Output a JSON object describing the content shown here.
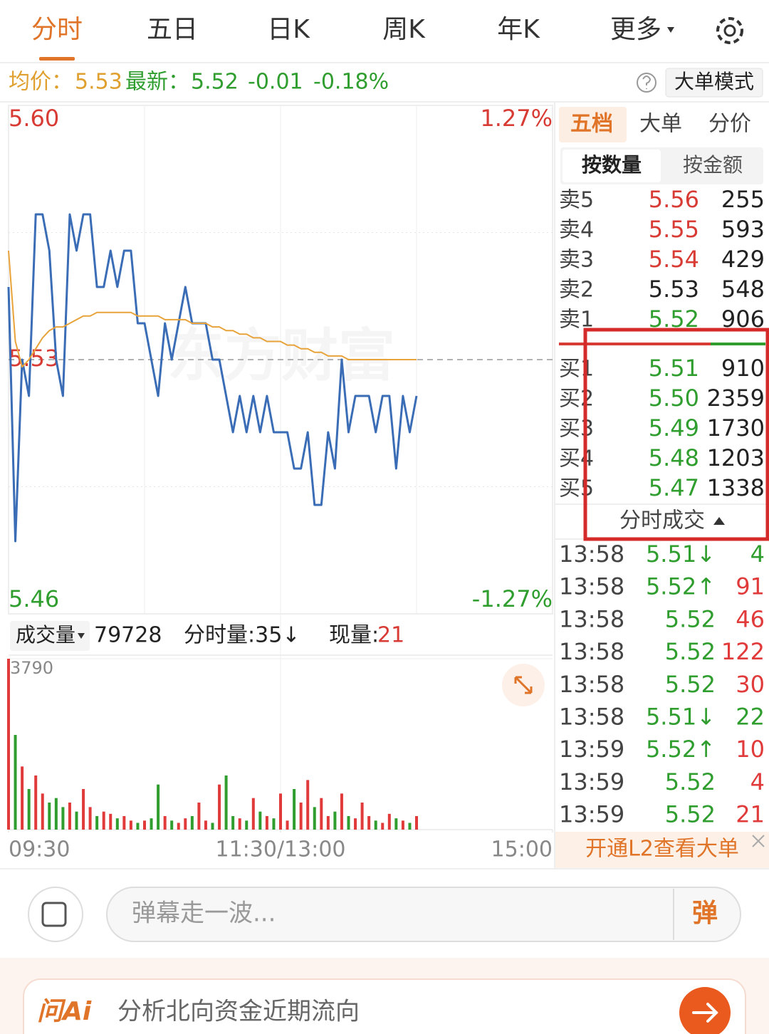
{
  "tabs": [
    "分时",
    "五日",
    "日K",
    "周K",
    "年K",
    "更多"
  ],
  "quote": {
    "avg_label": "均价：",
    "avg": "5.53",
    "latest_label": "最新：",
    "latest": "5.52",
    "change": "-0.01",
    "change_pct": "-0.18%"
  },
  "mode_button": "大单模式",
  "watermark": "东方财富",
  "chart_data": {
    "type": "line",
    "xlim": [
      0,
      240
    ],
    "xticks": [
      {
        "value": 0,
        "label": "09:30"
      },
      {
        "value": 120,
        "label": "11:30/13:00"
      },
      {
        "value": 240,
        "label": "15:00"
      }
    ],
    "ylim": [
      5.46,
      5.6
    ],
    "yticks": [
      {
        "value": 5.6,
        "label": "5.60"
      },
      {
        "value": 5.53,
        "label": "5.53"
      },
      {
        "value": 5.46,
        "label": "5.46"
      }
    ],
    "y2lim": [
      -1.27,
      1.27
    ],
    "y2ticks": [
      {
        "value": 1.27,
        "label": "1.27%"
      },
      {
        "value": -1.27,
        "label": "-1.27%"
      }
    ],
    "x": [
      0,
      3,
      6,
      9,
      12,
      15,
      18,
      21,
      24,
      27,
      30,
      33,
      36,
      39,
      42,
      45,
      48,
      51,
      54,
      57,
      60,
      63,
      66,
      69,
      72,
      75,
      78,
      81,
      84,
      87,
      90,
      93,
      96,
      99,
      102,
      105,
      108,
      111,
      114,
      117,
      120,
      123,
      126,
      129,
      132,
      135,
      138,
      141,
      144,
      147,
      150,
      153,
      156,
      159,
      162,
      165,
      168,
      171,
      174,
      177,
      180
    ],
    "series": [
      {
        "color": "#3a6db5",
        "values": [
          5.55,
          5.48,
          5.53,
          5.52,
          5.57,
          5.57,
          5.56,
          5.53,
          5.52,
          5.57,
          5.56,
          5.57,
          5.57,
          5.55,
          5.55,
          5.56,
          5.55,
          5.56,
          5.56,
          5.54,
          5.54,
          5.53,
          5.52,
          5.54,
          5.53,
          5.54,
          5.55,
          5.54,
          5.54,
          5.54,
          5.53,
          5.53,
          5.52,
          5.51,
          5.52,
          5.51,
          5.52,
          5.51,
          5.52,
          5.51,
          5.51,
          5.51,
          5.5,
          5.5,
          5.51,
          5.49,
          5.49,
          5.51,
          5.5,
          5.53,
          5.51,
          5.52,
          5.52,
          5.52,
          5.51,
          5.52,
          5.52,
          5.5,
          5.52,
          5.51,
          5.52
        ]
      },
      {
        "color": "#e8a33a",
        "values": [
          5.56,
          5.535,
          5.528,
          5.53,
          5.533,
          5.536,
          5.538,
          5.539,
          5.539,
          5.54,
          5.541,
          5.542,
          5.542,
          5.543,
          5.543,
          5.543,
          5.543,
          5.543,
          5.543,
          5.542,
          5.542,
          5.542,
          5.542,
          5.541,
          5.541,
          5.541,
          5.541,
          5.54,
          5.54,
          5.54,
          5.539,
          5.539,
          5.538,
          5.538,
          5.537,
          5.537,
          5.536,
          5.536,
          5.535,
          5.535,
          5.535,
          5.534,
          5.534,
          5.533,
          5.533,
          5.532,
          5.532,
          5.531,
          5.531,
          5.531,
          5.53,
          5.53,
          5.53,
          5.53,
          5.53,
          5.53,
          5.53,
          5.53,
          5.53,
          5.53,
          5.53
        ]
      }
    ],
    "volume": {
      "up_color": "#e03a3a",
      "down_color": "#2f9e2f",
      "ylim": [
        0,
        3790
      ],
      "yticks": [
        3790
      ],
      "values": [
        3790,
        2100,
        1400,
        900,
        1200,
        800,
        600,
        700,
        500,
        600,
        400,
        900,
        500,
        300,
        400,
        350,
        250,
        300,
        200,
        150,
        200,
        250,
        1000,
        300,
        200,
        150,
        250,
        300,
        600,
        200,
        150,
        1000,
        1200,
        300,
        250,
        200,
        700,
        400,
        300,
        250,
        800,
        200,
        900,
        600,
        1100,
        500,
        700,
        300,
        400,
        800,
        300,
        250,
        600,
        300,
        200,
        150,
        350,
        250,
        200,
        150,
        300
      ]
    }
  },
  "volume_bar": {
    "selector": "成交量",
    "total": "79728",
    "minute_vol": "分时量:35↓",
    "current_label": "现量:",
    "current": "21"
  },
  "panel_tabs": [
    "五档",
    "大单",
    "分价"
  ],
  "sub_tabs": [
    "按数量",
    "按金额"
  ],
  "sells": [
    [
      "卖5",
      "5.56",
      "255"
    ],
    [
      "卖4",
      "5.55",
      "593"
    ],
    [
      "卖3",
      "5.54",
      "429"
    ],
    [
      "卖2",
      "5.53",
      "548"
    ],
    [
      "卖1",
      "5.52",
      "906"
    ]
  ],
  "buys": [
    [
      "买1",
      "5.51",
      "910"
    ],
    [
      "买2",
      "5.50",
      "2359"
    ],
    [
      "买3",
      "5.49",
      "1730"
    ],
    [
      "买4",
      "5.48",
      "1203"
    ],
    [
      "买5",
      "5.47",
      "1338"
    ]
  ],
  "trades_title": "分时成交",
  "trades": [
    {
      "time": "13:58",
      "price": "5.51↓",
      "vol": "4",
      "color": "#2f9e2f"
    },
    {
      "time": "13:58",
      "price": "5.52↑",
      "vol": "91",
      "color": "#e03a3a"
    },
    {
      "time": "13:58",
      "price": "5.52",
      "vol": "46",
      "color": "#e03a3a"
    },
    {
      "time": "13:58",
      "price": "5.52",
      "vol": "122",
      "color": "#e03a3a"
    },
    {
      "time": "13:58",
      "price": "5.52",
      "vol": "30",
      "color": "#e03a3a"
    },
    {
      "time": "13:58",
      "price": "5.51↓",
      "vol": "22",
      "color": "#2f9e2f"
    },
    {
      "time": "13:59",
      "price": "5.52↑",
      "vol": "10",
      "color": "#e03a3a"
    },
    {
      "time": "13:59",
      "price": "5.52",
      "vol": "4",
      "color": "#e03a3a"
    },
    {
      "time": "13:59",
      "price": "5.52",
      "vol": "21",
      "color": "#e03a3a"
    }
  ],
  "l2_banner": "开通L2查看大单",
  "comment_placeholder": "弹幕走一波...",
  "comment_button": "弹",
  "ai": {
    "logo": "问Ai",
    "prompt": "分析北向资金近期流向"
  }
}
